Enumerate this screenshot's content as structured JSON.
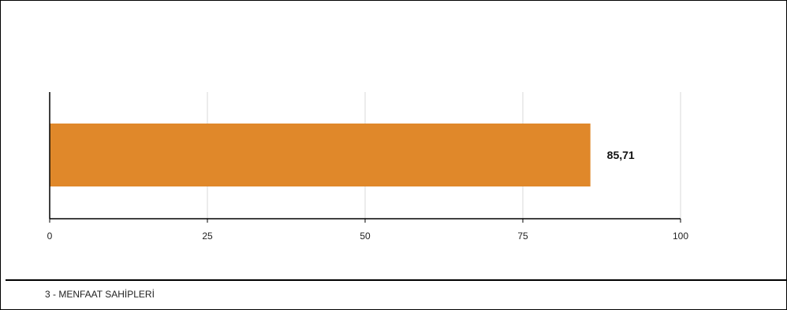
{
  "chart_data": {
    "type": "bar",
    "orientation": "horizontal",
    "categories": [
      "3 - MENFAAT SAHİPLERİ"
    ],
    "values": [
      85.71
    ],
    "data_labels": [
      "85,71"
    ],
    "xlim": [
      0,
      100
    ],
    "x_ticks": [
      0,
      25,
      50,
      75,
      100
    ],
    "x_tick_labels": [
      "0",
      "25",
      "50",
      "75",
      "100"
    ],
    "grid": true,
    "bar_color": "#E0882A",
    "grid_color": "#d9d9d9"
  },
  "footer": {
    "caption": "3 - MENFAAT SAHİPLERİ"
  }
}
